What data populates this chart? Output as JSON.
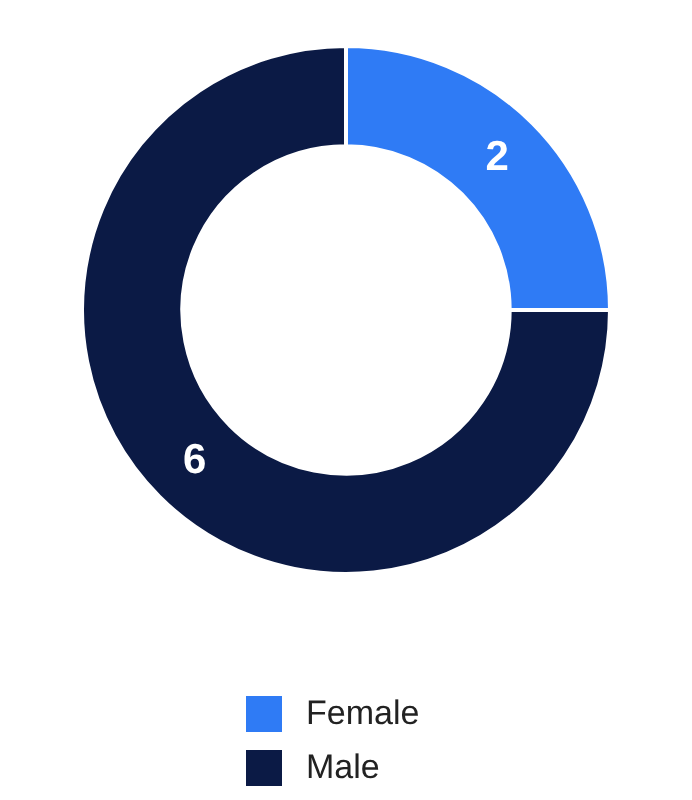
{
  "chart_data": {
    "type": "donut",
    "categories": [
      "Female",
      "Male"
    ],
    "values": [
      2,
      6
    ],
    "colors": [
      "#2f7bf5",
      "#0b1a45"
    ],
    "data_labels": true,
    "legend": "bottom"
  }
}
